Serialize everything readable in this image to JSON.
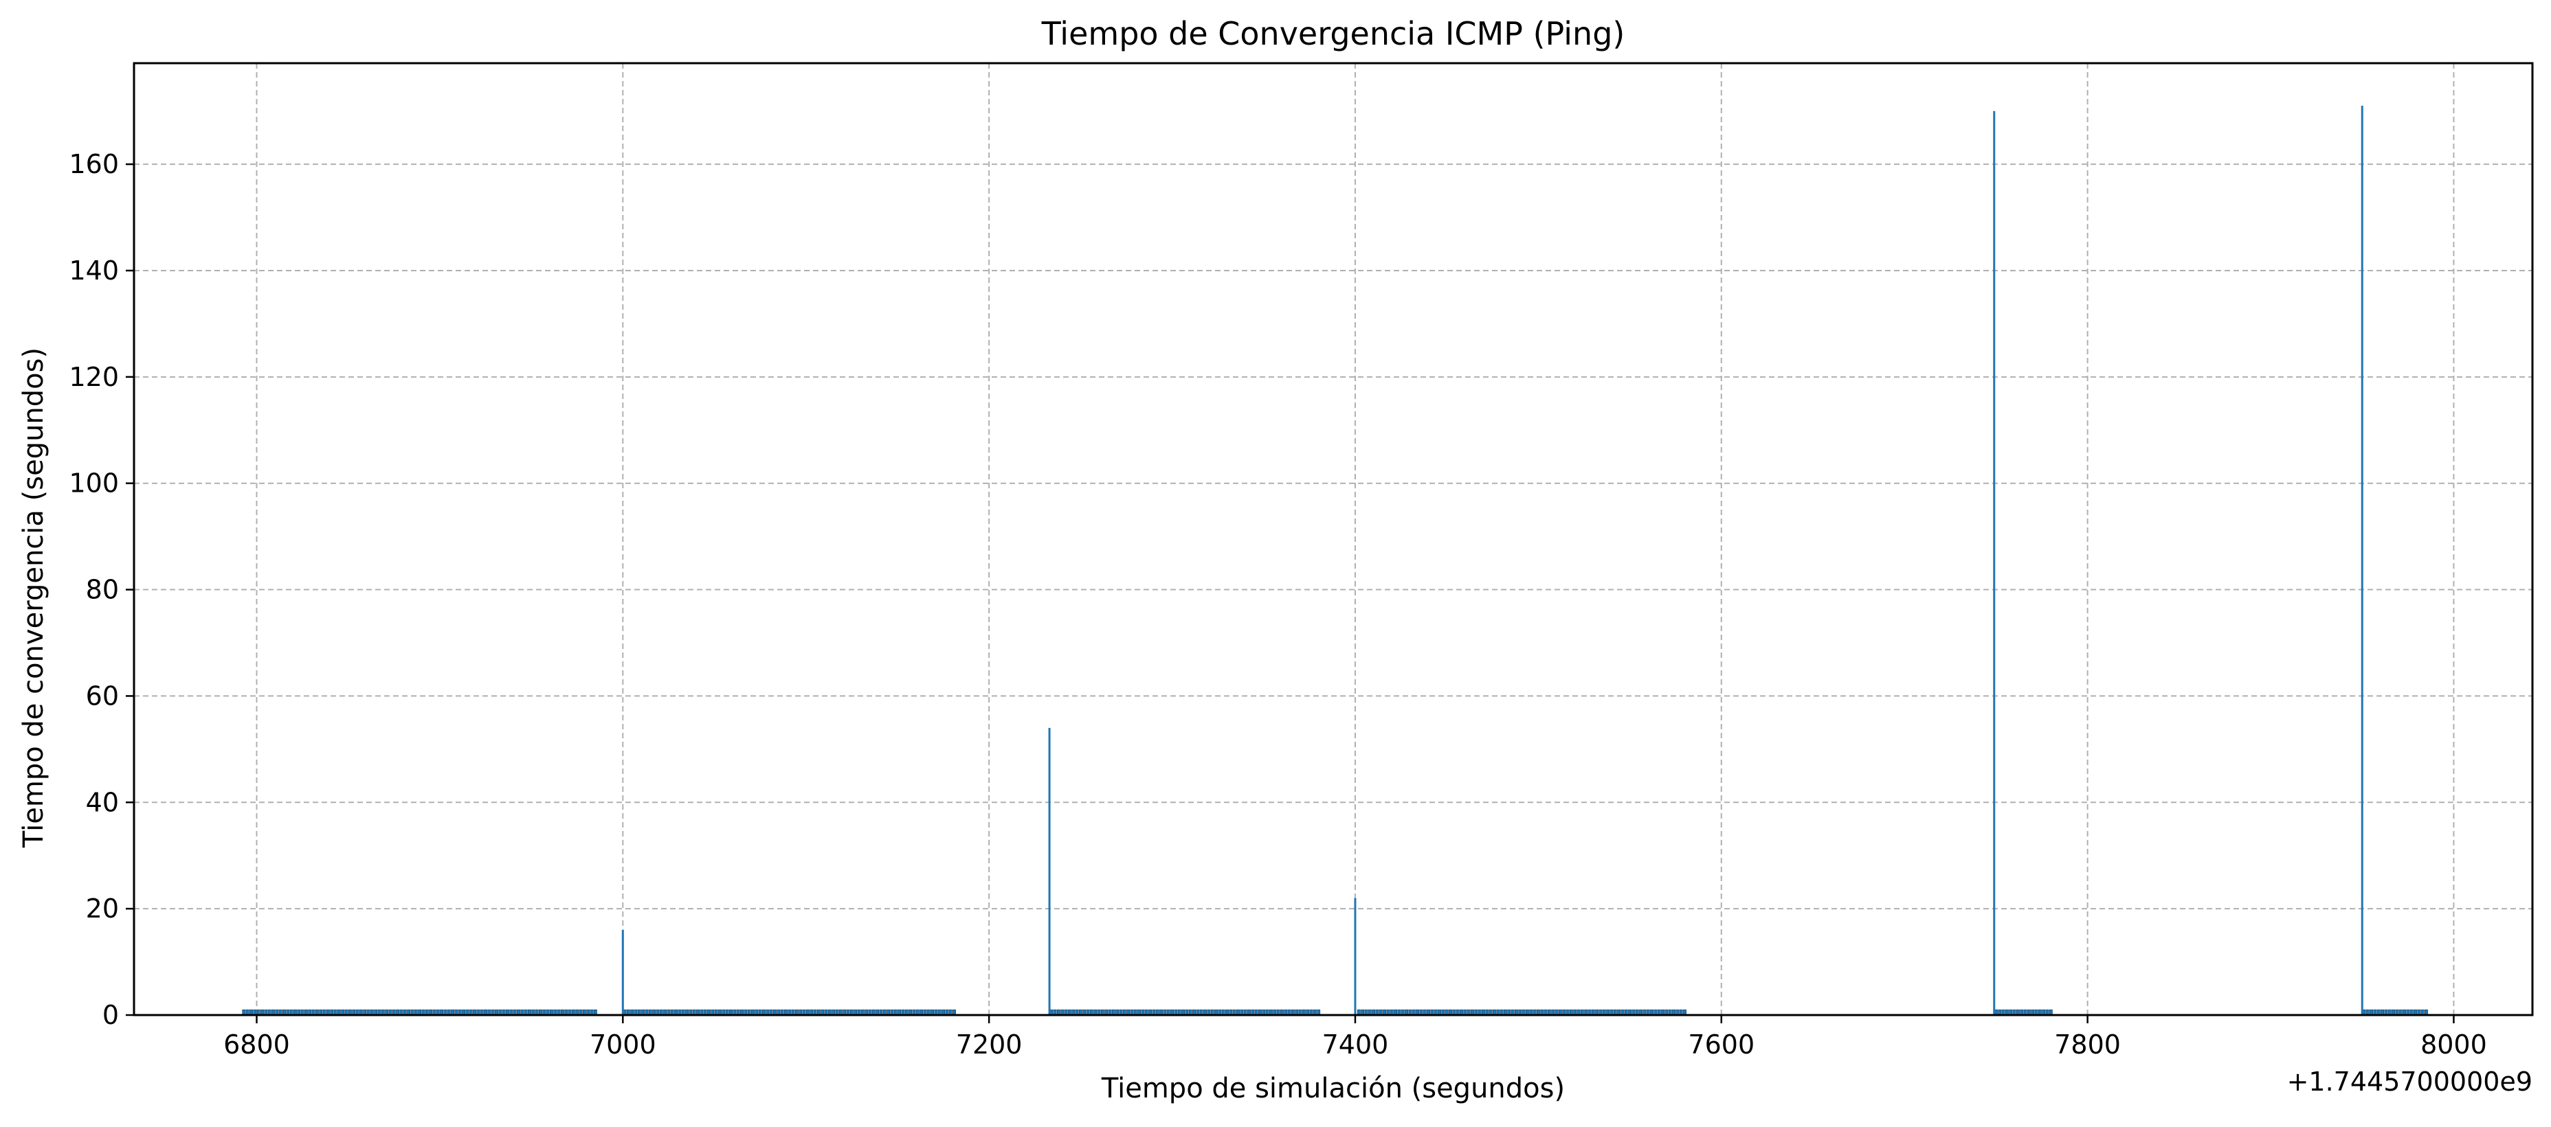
{
  "chart_data": {
    "type": "bar",
    "title": "Tiempo de Convergencia ICMP (Ping)",
    "xlabel": "Tiempo de simulación (segundos)",
    "ylabel": "Tiempo de convergencia (segundos)",
    "x_offset_label": "+1.7445700000e9",
    "xlim": [
      6733,
      8043
    ],
    "ylim": [
      0,
      179
    ],
    "x_ticks": [
      6800,
      7000,
      7200,
      7400,
      7600,
      7800,
      8000
    ],
    "y_ticks": [
      0,
      20,
      40,
      60,
      80,
      100,
      120,
      140,
      160
    ],
    "grid": true,
    "grid_style": "dashed",
    "bar_color": "#1f77b4",
    "baseline_segments": [
      {
        "start": 6793,
        "end": 6985,
        "step": 2,
        "value": 1
      },
      {
        "start": 7001,
        "end": 7181,
        "step": 2,
        "value": 1
      },
      {
        "start": 7234,
        "end": 7381,
        "step": 2,
        "value": 1
      },
      {
        "start": 7402,
        "end": 7580,
        "step": 2,
        "value": 1
      },
      {
        "start": 7750,
        "end": 7781,
        "step": 2,
        "value": 1
      },
      {
        "start": 7951,
        "end": 7985,
        "step": 2,
        "value": 1
      }
    ],
    "spikes": [
      {
        "x": 7000,
        "y": 16
      },
      {
        "x": 7233,
        "y": 54
      },
      {
        "x": 7400,
        "y": 22
      },
      {
        "x": 7749,
        "y": 170
      },
      {
        "x": 7950,
        "y": 171
      }
    ]
  }
}
